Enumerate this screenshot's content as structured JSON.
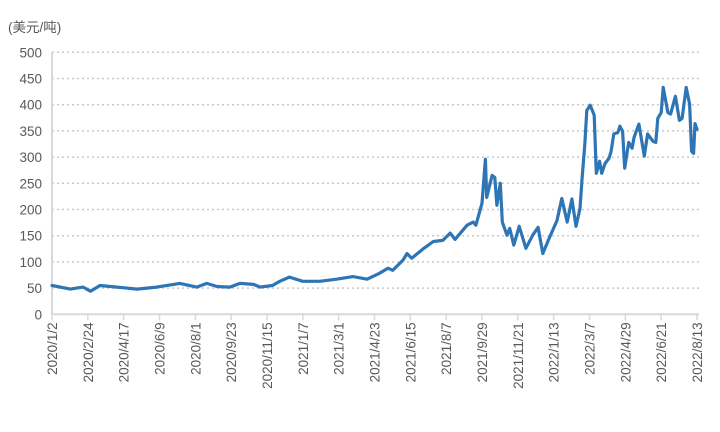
{
  "chart_data": {
    "type": "line",
    "title": "",
    "ylabel": "(美元/吨)",
    "xlabel": "",
    "ylim": [
      0,
      500
    ],
    "ytick_step": 50,
    "yticks": [
      "0",
      "50",
      "100",
      "150",
      "200",
      "250",
      "300",
      "350",
      "400",
      "450",
      "500"
    ],
    "xlim": [
      "2020-01-02",
      "2022-08-13"
    ],
    "xtick_labels": [
      "2020/1/2",
      "2020/2/24",
      "2020/4/17",
      "2020/6/9",
      "2020/8/1",
      "2020/9/23",
      "2020/11/15",
      "2021/1/7",
      "2021/3/1",
      "2021/4/23",
      "2021/6/15",
      "2021/8/7",
      "2021/9/29",
      "2021/11/21",
      "2022/1/13",
      "2022/3/7",
      "2022/4/29",
      "2022/6/21",
      "2022/8/13"
    ],
    "grid": "horizontal-dotted",
    "legend": "none",
    "line_color": "#2e75b6",
    "series": [
      {
        "x": [
          "2020-01-02",
          "2020-01-29",
          "2020-02-17",
          "2020-02-28",
          "2020-03-13",
          "2020-04-07",
          "2020-05-07",
          "2020-06-05",
          "2020-07-09",
          "2020-08-03",
          "2020-08-18",
          "2020-09-02",
          "2020-09-21",
          "2020-10-06",
          "2020-10-26",
          "2020-11-05",
          "2020-11-23",
          "2020-12-04",
          "2020-12-18",
          "2021-01-07",
          "2021-02-01",
          "2021-02-26",
          "2021-03-22",
          "2021-04-12",
          "2021-04-30",
          "2021-05-13",
          "2021-05-20",
          "2021-06-04",
          "2021-06-10",
          "2021-06-17",
          "2021-07-05",
          "2021-07-19",
          "2021-08-02",
          "2021-08-13",
          "2021-08-20",
          "2021-09-07",
          "2021-09-16",
          "2021-09-20",
          "2021-09-29",
          "2021-10-04",
          "2021-10-06",
          "2021-10-14",
          "2021-10-18",
          "2021-10-21",
          "2021-10-26",
          "2021-10-29",
          "2021-11-05",
          "2021-11-09",
          "2021-11-15",
          "2021-11-23",
          "2021-12-03",
          "2021-12-13",
          "2021-12-21",
          "2021-12-28",
          "2022-01-07",
          "2022-01-18",
          "2022-01-25",
          "2022-02-02",
          "2022-02-09",
          "2022-02-15",
          "2022-02-21",
          "2022-02-24",
          "2022-02-28",
          "2022-03-03",
          "2022-03-08",
          "2022-03-14",
          "2022-03-17",
          "2022-03-22",
          "2022-03-25",
          "2022-03-30",
          "2022-04-05",
          "2022-04-08",
          "2022-04-12",
          "2022-04-18",
          "2022-04-21",
          "2022-04-25",
          "2022-04-28",
          "2022-05-04",
          "2022-05-09",
          "2022-05-12",
          "2022-05-19",
          "2022-05-27",
          "2022-06-01",
          "2022-06-09",
          "2022-06-13",
          "2022-06-16",
          "2022-06-21",
          "2022-06-24",
          "2022-07-01",
          "2022-07-05",
          "2022-07-12",
          "2022-07-18",
          "2022-07-22",
          "2022-07-28",
          "2022-08-02",
          "2022-08-05",
          "2022-08-08",
          "2022-08-10",
          "2022-08-13"
        ],
        "y": [
          55,
          48,
          52,
          44,
          55,
          52,
          48,
          52,
          59,
          52,
          59,
          53,
          52,
          59,
          57,
          52,
          55,
          63,
          71,
          63,
          63,
          67,
          72,
          67,
          78,
          88,
          84,
          103,
          116,
          107,
          126,
          139,
          141,
          155,
          143,
          170,
          176,
          170,
          212,
          296,
          223,
          265,
          261,
          208,
          250,
          176,
          151,
          164,
          132,
          168,
          126,
          151,
          166,
          116,
          147,
          179,
          221,
          176,
          220,
          168,
          202,
          260,
          324,
          389,
          399,
          380,
          269,
          292,
          269,
          288,
          298,
          311,
          344,
          347,
          359,
          349,
          279,
          328,
          317,
          338,
          363,
          302,
          344,
          330,
          328,
          374,
          385,
          433,
          385,
          382,
          416,
          370,
          374,
          433,
          401,
          311,
          307,
          364,
          353
        ]
      }
    ]
  }
}
